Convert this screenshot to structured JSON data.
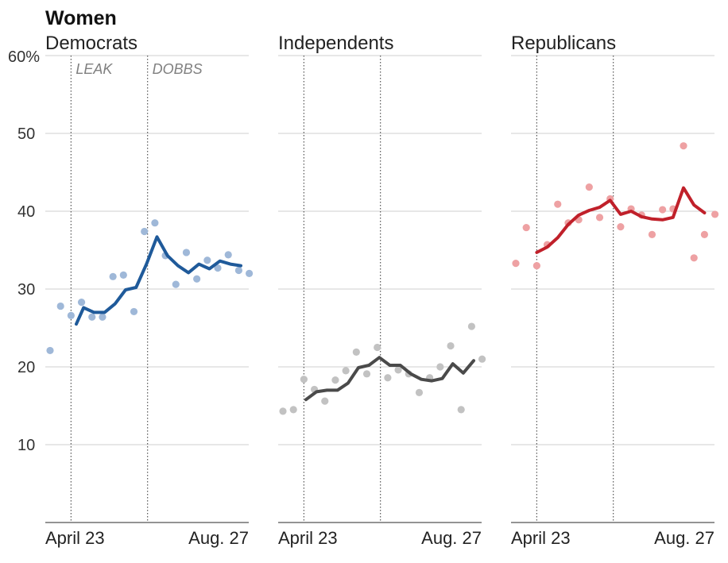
{
  "chart_data": {
    "type": "line",
    "title": "Women",
    "ylim": [
      0,
      60
    ],
    "yticks": [
      10,
      20,
      30,
      40,
      50,
      60
    ],
    "ytick_labels": [
      "10",
      "20",
      "30",
      "40",
      "50",
      "60%"
    ],
    "xlim": [
      0,
      18.5
    ],
    "xtick_labels": [
      "April 23",
      "Aug. 27"
    ],
    "events": [
      {
        "label": "LEAK",
        "x": 2
      },
      {
        "label": "DOBBS",
        "x": 9.3
      }
    ],
    "grid": true,
    "panels": [
      {
        "name": "Democrats",
        "line_color": "#1f5a9a",
        "point_color": "#9fb8d8",
        "points": {
          "x": [
            0,
            1,
            2,
            3,
            4,
            5,
            6,
            7,
            8,
            9,
            10,
            11,
            12,
            13,
            14,
            15,
            16,
            17,
            18,
            19
          ],
          "y": [
            22.1,
            27.8,
            26.6,
            28.3,
            26.4,
            26.4,
            31.6,
            31.8,
            27.1,
            37.4,
            38.5,
            34.3,
            30.6,
            34.7,
            31.3,
            33.7,
            32.7,
            34.4,
            32.4,
            32.0
          ]
        },
        "trend": {
          "x": [
            2.5,
            3.2,
            4.2,
            5.2,
            6.2,
            7.2,
            8.2,
            9.2,
            10.2,
            11.2,
            12.2,
            13.2,
            14.2,
            15.2,
            16.2,
            17.2,
            18.2
          ],
          "y": [
            25.5,
            27.6,
            27.0,
            27.0,
            28.1,
            29.9,
            30.2,
            33.2,
            36.7,
            34.3,
            33.0,
            32.1,
            33.2,
            32.6,
            33.6,
            33.2,
            33.0
          ]
        }
      },
      {
        "name": "Independents",
        "line_color": "#4a4a4a",
        "point_color": "#c2c2c2",
        "points": {
          "x": [
            0,
            1,
            2,
            3,
            4,
            5,
            6,
            7,
            8,
            9,
            10,
            11,
            12,
            13,
            14,
            15,
            16,
            17,
            18,
            19
          ],
          "y": [
            14.3,
            14.5,
            18.4,
            17.1,
            15.6,
            18.3,
            19.5,
            21.9,
            19.1,
            22.5,
            18.6,
            19.6,
            19.1,
            16.7,
            18.6,
            20.0,
            22.7,
            14.5,
            25.2,
            21.0
          ]
        },
        "trend": {
          "x": [
            2.2,
            3.2,
            4.2,
            5.2,
            6.2,
            7.2,
            8.2,
            9.2,
            10.2,
            11.2,
            12.2,
            13.2,
            14.2,
            15.2,
            16.2,
            17.2,
            18.2
          ],
          "y": [
            15.8,
            16.8,
            17.0,
            17.0,
            17.9,
            19.9,
            20.2,
            21.2,
            20.2,
            20.2,
            19.1,
            18.4,
            18.2,
            18.5,
            20.4,
            19.2,
            20.8
          ]
        }
      },
      {
        "name": "Republicans",
        "line_color": "#c0202a",
        "point_color": "#eea1a3",
        "points": {
          "x": [
            0,
            1,
            2,
            3,
            4,
            5,
            6,
            7,
            8,
            9,
            10,
            11,
            12,
            13,
            14,
            15,
            16,
            17,
            18,
            19
          ],
          "y": [
            33.3,
            37.9,
            33.0,
            35.7,
            40.9,
            38.5,
            38.9,
            43.1,
            39.2,
            41.6,
            38.0,
            40.3,
            39.5,
            37.0,
            40.2,
            40.3,
            48.4,
            34.0,
            37.0,
            39.6
          ]
        },
        "trend": {
          "x": [
            2.0,
            3.0,
            4.0,
            5.0,
            6.0,
            7.0,
            8.0,
            9.0,
            10.0,
            11.0,
            12.0,
            13.0,
            14.0,
            15.0,
            16.0,
            17.0,
            18.0
          ],
          "y": [
            34.7,
            35.4,
            36.6,
            38.3,
            39.5,
            40.1,
            40.5,
            41.4,
            39.6,
            40.0,
            39.3,
            39.0,
            38.9,
            39.2,
            43.0,
            40.8,
            39.8
          ]
        }
      }
    ]
  }
}
